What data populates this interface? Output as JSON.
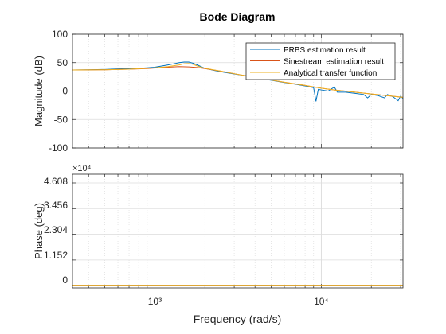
{
  "chart_data": {
    "type": "line",
    "title": "Bode Diagram",
    "xlabel": "Frequency (rad/s)",
    "x_scale": "log",
    "xlim": [
      320,
      31000
    ],
    "x_ticks": [
      {
        "value": 1000,
        "label": "10³"
      },
      {
        "value": 10000,
        "label": "10⁴"
      }
    ],
    "legend": {
      "position": "top-right",
      "entries": [
        "PRBS estimation result",
        "Sinestream estimation result",
        "Analytical transfer function"
      ]
    },
    "grid": true,
    "colors": {
      "prbs": "#0072BD",
      "sinestream": "#D95319",
      "analytical": "#EDB120"
    },
    "magnitude": {
      "ylabel": "Magnitude (dB)",
      "ylim": [
        -100,
        100
      ],
      "y_ticks": [
        "100",
        "50",
        "0",
        "-50",
        "-100"
      ],
      "series": [
        {
          "name": "PRBS estimation result",
          "points": [
            [
              320,
              37
            ],
            [
              400,
              37.5
            ],
            [
              500,
              38
            ],
            [
              600,
              39
            ],
            [
              700,
              39.5
            ],
            [
              800,
              40
            ],
            [
              900,
              41
            ],
            [
              1000,
              42
            ],
            [
              1100,
              44
            ],
            [
              1200,
              46
            ],
            [
              1300,
              48
            ],
            [
              1400,
              50
            ],
            [
              1500,
              51
            ],
            [
              1600,
              51
            ],
            [
              1700,
              49
            ],
            [
              1800,
              46
            ],
            [
              2000,
              40
            ],
            [
              2300,
              36
            ],
            [
              2600,
              33
            ],
            [
              3000,
              30
            ],
            [
              3500,
              27
            ],
            [
              4000,
              24
            ],
            [
              5000,
              19
            ],
            [
              6000,
              15
            ],
            [
              7000,
              12
            ],
            [
              8000,
              9
            ],
            [
              9000,
              6
            ],
            [
              9300,
              -18
            ],
            [
              9600,
              3
            ],
            [
              10000,
              2
            ],
            [
              11000,
              0
            ],
            [
              12000,
              7
            ],
            [
              12500,
              -2
            ],
            [
              14000,
              -2
            ],
            [
              16000,
              -4
            ],
            [
              18000,
              -6
            ],
            [
              19000,
              -12
            ],
            [
              20000,
              -6
            ],
            [
              22000,
              -8
            ],
            [
              24000,
              -12
            ],
            [
              25000,
              -6
            ],
            [
              27000,
              -10
            ],
            [
              29000,
              -17
            ],
            [
              30000,
              -9
            ],
            [
              31000,
              -13
            ]
          ]
        },
        {
          "name": "Sinestream estimation result",
          "points": [
            [
              320,
              37
            ],
            [
              500,
              37.5
            ],
            [
              700,
              38.5
            ],
            [
              900,
              39.5
            ],
            [
              1000,
              40.5
            ],
            [
              1200,
              42
            ],
            [
              1400,
              43
            ],
            [
              1600,
              42.5
            ],
            [
              1800,
              41.5
            ],
            [
              2000,
              39.5
            ],
            [
              2500,
              35
            ],
            [
              3000,
              30.5
            ],
            [
              4000,
              24
            ],
            [
              5000,
              19.5
            ],
            [
              6000,
              15.5
            ],
            [
              8000,
              10
            ],
            [
              10000,
              5
            ],
            [
              12000,
              2
            ],
            [
              15000,
              -1
            ],
            [
              20000,
              -5
            ],
            [
              25000,
              -8
            ],
            [
              31000,
              -11
            ]
          ]
        },
        {
          "name": "Analytical transfer function",
          "points": [
            [
              320,
              37
            ],
            [
              500,
              37.5
            ],
            [
              700,
              38.5
            ],
            [
              900,
              40
            ],
            [
              1000,
              41
            ],
            [
              1200,
              43
            ],
            [
              1400,
              46
            ],
            [
              1500,
              48
            ],
            [
              1600,
              48.5
            ],
            [
              1700,
              47
            ],
            [
              1800,
              44
            ],
            [
              2000,
              40
            ],
            [
              2500,
              35
            ],
            [
              3000,
              30.5
            ],
            [
              4000,
              24
            ],
            [
              5000,
              19.5
            ],
            [
              6000,
              15.5
            ],
            [
              8000,
              10
            ],
            [
              10000,
              5
            ],
            [
              12000,
              2
            ],
            [
              15000,
              -1
            ],
            [
              20000,
              -5
            ],
            [
              25000,
              -8
            ],
            [
              31000,
              -11
            ]
          ]
        }
      ]
    },
    "phase": {
      "ylabel": "Phase (deg)",
      "exponent_label": "×10⁴",
      "ylim": [
        -1000,
        50000
      ],
      "y_ticks": [
        "4.608",
        "3.456",
        "2.304",
        "1.152",
        "0"
      ],
      "series": [
        {
          "name": "PRBS estimation result",
          "points": [
            [
              320,
              0
            ],
            [
              31000,
              0
            ]
          ]
        },
        {
          "name": "Sinestream estimation result",
          "points": [
            [
              320,
              0
            ],
            [
              31000,
              0
            ]
          ]
        },
        {
          "name": "Analytical transfer function",
          "points": [
            [
              320,
              0
            ],
            [
              31000,
              0
            ]
          ]
        }
      ]
    }
  }
}
